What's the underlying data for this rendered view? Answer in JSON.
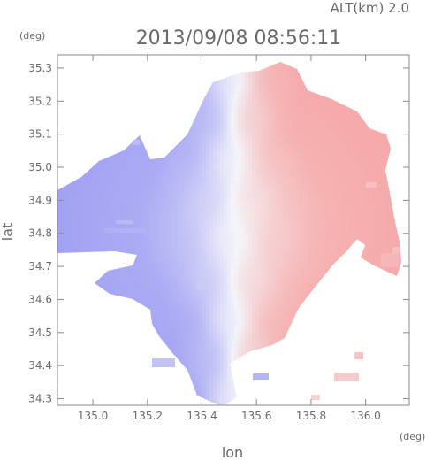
{
  "header": {
    "altitude_label": "ALT(km) 2.0",
    "timestamp": "2013/09/08 08:56:11"
  },
  "chart_data": {
    "type": "heatmap",
    "title": "2013/09/08 08:56:11",
    "xlabel": "lon",
    "ylabel": "lat",
    "x_unit": "(deg)",
    "y_unit": "(deg)",
    "xlim": [
      134.87,
      136.16
    ],
    "ylim": [
      34.28,
      35.34
    ],
    "x_ticks": [
      135.0,
      135.2,
      135.4,
      135.6,
      135.8,
      136.0
    ],
    "x_tick_labels": [
      "135.0",
      "135.2",
      "135.4",
      "135.6",
      "135.8",
      "136.0"
    ],
    "y_ticks": [
      34.3,
      34.4,
      34.5,
      34.6,
      34.7,
      34.8,
      34.9,
      35.0,
      35.1,
      35.2,
      35.3
    ],
    "y_tick_labels": [
      "34.3",
      "34.4",
      "34.5",
      "34.6",
      "34.7",
      "34.8",
      "34.9",
      "35.0",
      "35.1",
      "35.2",
      "35.3"
    ],
    "radar_center": {
      "lon": 135.52,
      "lat": 34.82
    },
    "colors": {
      "negative": "#9e9ef2",
      "neutral": "#f2f2f8",
      "positive": "#f5a5a5"
    },
    "grid": true,
    "legend": "none"
  }
}
